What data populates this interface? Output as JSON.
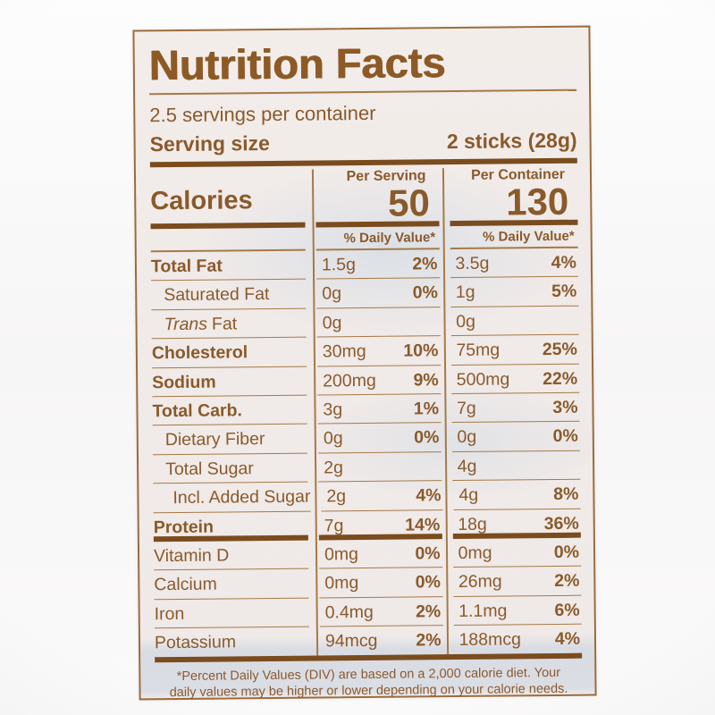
{
  "label": {
    "title": "Nutrition Facts",
    "servings_per_container": "2.5 servings per container",
    "serving_size_label": "Serving size",
    "serving_size_value": "2 sticks (28g)",
    "calories_label": "Calories",
    "columns": {
      "per_serving": {
        "header": "Per Serving",
        "calories": "50"
      },
      "per_container": {
        "header": "Per Container",
        "calories": "130"
      }
    },
    "daily_value_header": "% Daily Value*",
    "rows": [
      {
        "name": "Total Fat",
        "ps_amount": "1.5g",
        "ps_dv": "2%",
        "pc_amount": "3.5g",
        "pc_dv": "4%"
      },
      {
        "name": "Saturated Fat",
        "ps_amount": "0g",
        "ps_dv": "0%",
        "pc_amount": "1g",
        "pc_dv": "5%"
      },
      {
        "name_italic": "Trans",
        "name": "Fat",
        "ps_amount": "0g",
        "ps_dv": "",
        "pc_amount": "0g",
        "pc_dv": ""
      },
      {
        "name": "Cholesterol",
        "ps_amount": "30mg",
        "ps_dv": "10%",
        "pc_amount": "75mg",
        "pc_dv": "25%"
      },
      {
        "name": "Sodium",
        "ps_amount": "200mg",
        "ps_dv": "9%",
        "pc_amount": "500mg",
        "pc_dv": "22%"
      },
      {
        "name": "Total Carb.",
        "ps_amount": "3g",
        "ps_dv": "1%",
        "pc_amount": "7g",
        "pc_dv": "3%"
      },
      {
        "name": "Dietary Fiber",
        "ps_amount": "0g",
        "ps_dv": "0%",
        "pc_amount": "0g",
        "pc_dv": "0%"
      },
      {
        "name": "Total Sugar",
        "ps_amount": "2g",
        "ps_dv": "",
        "pc_amount": "4g",
        "pc_dv": ""
      },
      {
        "name": "Incl. Added Sugar",
        "ps_amount": "2g",
        "ps_dv": "4%",
        "pc_amount": "4g",
        "pc_dv": "8%"
      },
      {
        "name": "Protein",
        "ps_amount": "7g",
        "ps_dv": "14%",
        "pc_amount": "18g",
        "pc_dv": "36%"
      },
      {
        "name": "Vitamin D",
        "ps_amount": "0mg",
        "ps_dv": "0%",
        "pc_amount": "0mg",
        "pc_dv": "0%"
      },
      {
        "name": "Calcium",
        "ps_amount": "0mg",
        "ps_dv": "0%",
        "pc_amount": "26mg",
        "pc_dv": "2%"
      },
      {
        "name": "Iron",
        "ps_amount": "0.4mg",
        "ps_dv": "2%",
        "pc_amount": "1.1mg",
        "pc_dv": "6%"
      },
      {
        "name": "Potassium",
        "ps_amount": "94mcg",
        "ps_dv": "2%",
        "pc_amount": "188mcg",
        "pc_dv": "4%"
      }
    ],
    "footnote_line1": "*Percent Daily Values (DIV) are based on a 2,000 calorie diet. Your",
    "footnote_line2": "daily values may be higher or lower depending on your calorie needs.",
    "colors": {
      "text_brown": "#8a5a2b",
      "bar_brown": "#7a4c1e",
      "line": "#a57a48"
    }
  }
}
